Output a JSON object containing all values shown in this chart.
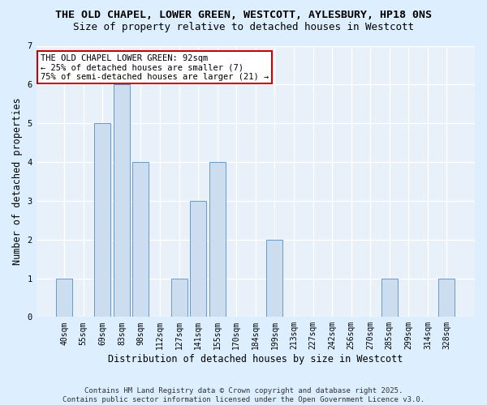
{
  "title_line1": "THE OLD CHAPEL, LOWER GREEN, WESTCOTT, AYLESBURY, HP18 0NS",
  "title_line2": "Size of property relative to detached houses in Westcott",
  "xlabel": "Distribution of detached houses by size in Westcott",
  "ylabel": "Number of detached properties",
  "categories": [
    "40sqm",
    "55sqm",
    "69sqm",
    "83sqm",
    "98sqm",
    "112sqm",
    "127sqm",
    "141sqm",
    "155sqm",
    "170sqm",
    "184sqm",
    "199sqm",
    "213sqm",
    "227sqm",
    "242sqm",
    "256sqm",
    "270sqm",
    "285sqm",
    "299sqm",
    "314sqm",
    "328sqm"
  ],
  "values": [
    1,
    0,
    5,
    6,
    4,
    0,
    1,
    3,
    4,
    0,
    0,
    2,
    0,
    0,
    0,
    0,
    0,
    1,
    0,
    0,
    1
  ],
  "bar_color": "#ccddf0",
  "bar_edge_color": "#6699cc",
  "ylim": [
    0,
    7
  ],
  "yticks": [
    0,
    1,
    2,
    3,
    4,
    5,
    6,
    7
  ],
  "annotation_box_text": "THE OLD CHAPEL LOWER GREEN: 92sqm\n← 25% of detached houses are smaller (7)\n75% of semi-detached houses are larger (21) →",
  "annotation_box_color": "#ffffff",
  "annotation_box_edge_color": "#cc0000",
  "footer_text": "Contains HM Land Registry data © Crown copyright and database right 2025.\nContains public sector information licensed under the Open Government Licence v3.0.",
  "background_color": "#ddeeff",
  "grid_color": "#ffffff",
  "plot_bg_color": "#e8f0fa",
  "title_fontsize": 9.5,
  "subtitle_fontsize": 9,
  "tick_fontsize": 7,
  "label_fontsize": 8.5,
  "annotation_fontsize": 7.5,
  "footer_fontsize": 6.5
}
